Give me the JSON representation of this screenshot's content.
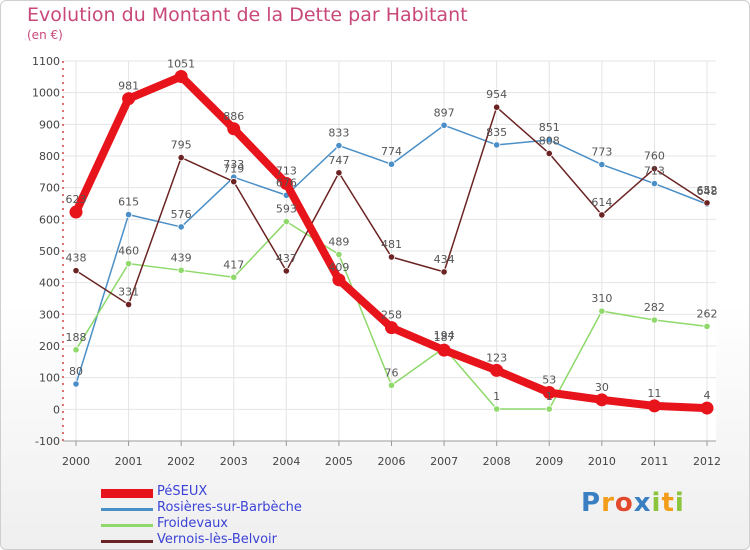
{
  "chart_data": {
    "type": "line",
    "title": "Evolution du Montant de la Dette par Habitant",
    "subtitle": "(en €)",
    "xlabel": "",
    "ylabel": "",
    "categories": [
      "2000",
      "2001",
      "2002",
      "2003",
      "2004",
      "2005",
      "2006",
      "2007",
      "2008",
      "2009",
      "2010",
      "2011",
      "2012"
    ],
    "ylim": [
      -100,
      1100
    ],
    "yticks": [
      -100,
      0,
      100,
      200,
      300,
      400,
      500,
      600,
      700,
      800,
      900,
      1000,
      1100
    ],
    "grid": true,
    "legend_position": "bottom-left",
    "series": [
      {
        "name": "PéSEUX",
        "color": "#e8141b",
        "values": [
          623,
          981,
          1051,
          886,
          713,
          409,
          258,
          187,
          123,
          53,
          30,
          11,
          4
        ]
      },
      {
        "name": "Rosières-sur-Barbèche",
        "color": "#4a8fc7",
        "values": [
          80,
          615,
          576,
          733,
          676,
          833,
          774,
          897,
          835,
          851,
          773,
          713,
          648
        ]
      },
      {
        "name": "Froidevaux",
        "color": "#8ed96a",
        "values": [
          188,
          460,
          439,
          417,
          593,
          489,
          76,
          194,
          1,
          1,
          310,
          282,
          262
        ]
      },
      {
        "name": "Vernois-lès-Belvoir",
        "color": "#6b2423",
        "values": [
          438,
          331,
          795,
          719,
          437,
          747,
          481,
          434,
          954,
          808,
          614,
          760,
          652
        ]
      }
    ]
  },
  "brand": {
    "letters": [
      "P",
      "r",
      "o",
      "x",
      "i",
      "t",
      "i"
    ],
    "colors": [
      "#3a7fc1",
      "#f29c1a",
      "#e24a2b",
      "#3a7fc1",
      "#8cc43c",
      "#f29c1a",
      "#8cc43c"
    ]
  }
}
